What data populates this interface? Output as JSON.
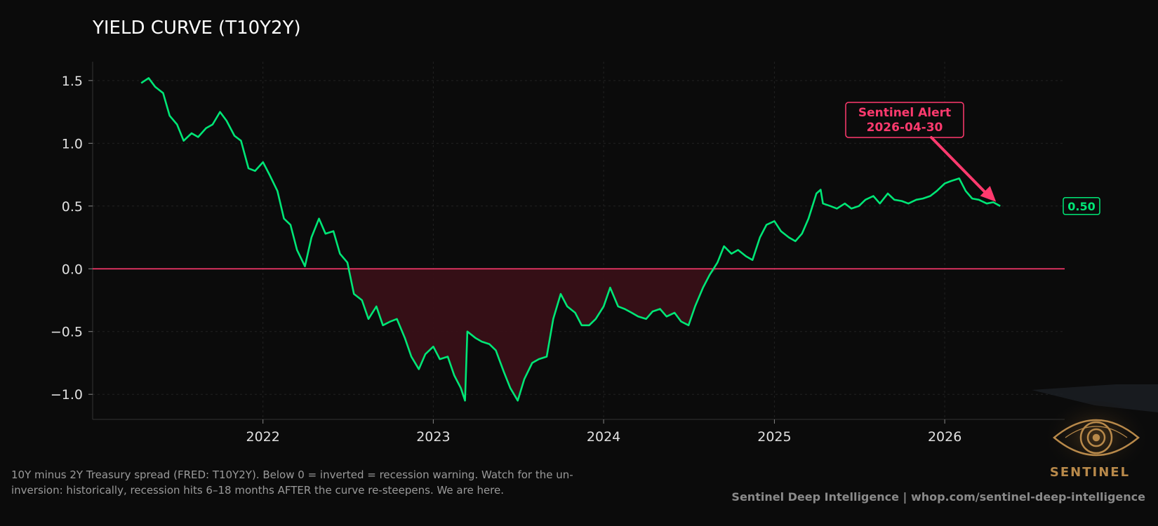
{
  "page": {
    "title": "YIELD CURVE (T10Y2Y)"
  },
  "chart_data": {
    "type": "line",
    "title": "YIELD CURVE (T10Y2Y)",
    "xlabel": "",
    "ylabel": "",
    "x_ticks": [
      "2022",
      "2023",
      "2024",
      "2025",
      "2026"
    ],
    "y_ticks": [
      "1.5",
      "1.0",
      "0.5",
      "0.0",
      "−0.5",
      "−1.0"
    ],
    "xlim": [
      "2021-01-01",
      "2026-09-15"
    ],
    "ylim": [
      -1.2,
      1.65
    ],
    "grid": true,
    "zero_line": {
      "value": 0.0,
      "color": "#ff3a6e"
    },
    "inversion_fill_color": "#3a1017",
    "series": [
      {
        "color": "#00e676",
        "x": [
          "2021-04-15",
          "2021-05-01",
          "2021-05-15",
          "2021-06-01",
          "2021-06-15",
          "2021-07-01",
          "2021-07-15",
          "2021-08-01",
          "2021-08-15",
          "2021-09-01",
          "2021-09-15",
          "2021-10-01",
          "2021-10-15",
          "2021-11-01",
          "2021-11-15",
          "2021-12-01",
          "2021-12-15",
          "2022-01-01",
          "2022-01-15",
          "2022-02-01",
          "2022-02-15",
          "2022-03-01",
          "2022-03-15",
          "2022-04-01",
          "2022-04-15",
          "2022-05-01",
          "2022-05-15",
          "2022-06-01",
          "2022-06-15",
          "2022-07-01",
          "2022-07-15",
          "2022-08-01",
          "2022-08-15",
          "2022-09-01",
          "2022-09-15",
          "2022-10-01",
          "2022-10-15",
          "2022-11-01",
          "2022-11-15",
          "2022-12-01",
          "2022-12-15",
          "2023-01-01",
          "2023-01-15",
          "2023-02-01",
          "2023-02-15",
          "2023-03-01",
          "2023-03-10",
          "2023-03-15",
          "2023-04-01",
          "2023-04-15",
          "2023-05-01",
          "2023-05-15",
          "2023-06-01",
          "2023-06-15",
          "2023-07-01",
          "2023-07-15",
          "2023-08-01",
          "2023-08-15",
          "2023-09-01",
          "2023-09-15",
          "2023-10-01",
          "2023-10-15",
          "2023-11-01",
          "2023-11-15",
          "2023-12-01",
          "2023-12-15",
          "2024-01-01",
          "2024-01-15",
          "2024-02-01",
          "2024-02-15",
          "2024-03-01",
          "2024-03-15",
          "2024-04-01",
          "2024-04-15",
          "2024-05-01",
          "2024-05-15",
          "2024-06-01",
          "2024-06-15",
          "2024-07-01",
          "2024-07-15",
          "2024-08-01",
          "2024-08-15",
          "2024-09-01",
          "2024-09-15",
          "2024-10-01",
          "2024-10-15",
          "2024-11-01",
          "2024-11-15",
          "2024-12-01",
          "2024-12-15",
          "2025-01-01",
          "2025-01-15",
          "2025-02-01",
          "2025-02-15",
          "2025-03-01",
          "2025-03-15",
          "2025-04-01",
          "2025-04-10",
          "2025-04-15",
          "2025-05-01",
          "2025-05-15",
          "2025-06-01",
          "2025-06-15",
          "2025-07-01",
          "2025-07-15",
          "2025-08-01",
          "2025-08-15",
          "2025-09-01",
          "2025-09-15",
          "2025-10-01",
          "2025-10-15",
          "2025-11-01",
          "2025-11-15",
          "2025-12-01",
          "2025-12-15",
          "2026-01-01",
          "2026-01-15",
          "2026-02-01",
          "2026-02-15",
          "2026-03-01",
          "2026-03-15",
          "2026-04-01",
          "2026-04-15",
          "2026-04-30"
        ],
        "y": [
          1.48,
          1.52,
          1.45,
          1.4,
          1.22,
          1.15,
          1.02,
          1.08,
          1.05,
          1.12,
          1.15,
          1.25,
          1.18,
          1.06,
          1.02,
          0.8,
          0.78,
          0.85,
          0.75,
          0.62,
          0.4,
          0.35,
          0.15,
          0.02,
          0.25,
          0.4,
          0.28,
          0.3,
          0.12,
          0.05,
          -0.2,
          -0.25,
          -0.4,
          -0.3,
          -0.45,
          -0.42,
          -0.4,
          -0.55,
          -0.7,
          -0.8,
          -0.68,
          -0.62,
          -0.72,
          -0.7,
          -0.85,
          -0.95,
          -1.05,
          -0.5,
          -0.55,
          -0.58,
          -0.6,
          -0.65,
          -0.82,
          -0.95,
          -1.05,
          -0.88,
          -0.75,
          -0.72,
          -0.7,
          -0.4,
          -0.2,
          -0.3,
          -0.35,
          -0.45,
          -0.45,
          -0.4,
          -0.3,
          -0.15,
          -0.3,
          -0.32,
          -0.35,
          -0.38,
          -0.4,
          -0.34,
          -0.32,
          -0.38,
          -0.35,
          -0.42,
          -0.45,
          -0.3,
          -0.15,
          -0.05,
          0.05,
          0.18,
          0.12,
          0.15,
          0.1,
          0.07,
          0.25,
          0.35,
          0.38,
          0.3,
          0.25,
          0.22,
          0.28,
          0.4,
          0.6,
          0.63,
          0.52,
          0.5,
          0.48,
          0.52,
          0.48,
          0.5,
          0.55,
          0.58,
          0.52,
          0.6,
          0.55,
          0.54,
          0.52,
          0.55,
          0.56,
          0.58,
          0.62,
          0.68,
          0.7,
          0.72,
          0.62,
          0.56,
          0.55,
          0.52,
          0.53,
          0.5
        ]
      }
    ],
    "annotation": {
      "text_line1": "Sentinel Alert",
      "text_line2": "2026-04-30",
      "target_x": "2026-04-30",
      "target_y": 0.5,
      "color": "#ff3a6e"
    },
    "last_value_label": {
      "text": "0.50",
      "color": "#00e676"
    }
  },
  "footer": {
    "note_line1": "10Y minus 2Y Treasury spread (FRED: T10Y2Y). Below 0 = inverted = recession warning. Watch for the un-",
    "note_line2": "inversion: historically, recession hits 6–18 months AFTER the curve re-steepens. We are here.",
    "credit": "Sentinel Deep Intelligence  |  whop.com/sentinel-deep-intelligence"
  },
  "logo": {
    "text": "SENTINEL",
    "icon": "eye-icon",
    "color": "#b8894a"
  }
}
